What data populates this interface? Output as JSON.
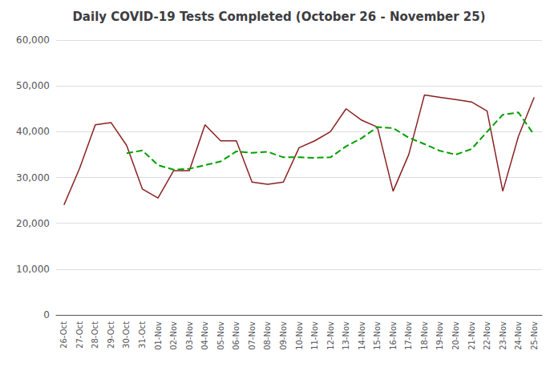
{
  "chart_data": {
    "type": "line",
    "title": "Daily COVID-19 Tests Completed (October 26 - November 25)",
    "categories": [
      "26-Oct",
      "27-Oct",
      "28-Oct",
      "29-Oct",
      "30-Oct",
      "31-Oct",
      "01-Nov",
      "02-Nov",
      "03-Nov",
      "04-Nov",
      "05-Nov",
      "06-Nov",
      "07-Nov",
      "08-Nov",
      "09-Nov",
      "10-Nov",
      "11-Nov",
      "12-Nov",
      "13-Nov",
      "14-Nov",
      "15-Nov",
      "16-Nov",
      "17-Nov",
      "18-Nov",
      "19-Nov",
      "20-Nov",
      "21-Nov",
      "22-Nov",
      "23-Nov",
      "24-Nov",
      "25-Nov"
    ],
    "series": [
      {
        "color": "#8B2020",
        "line_style": "solid",
        "values": [
          24000,
          32000,
          41500,
          42000,
          37000,
          27500,
          25500,
          31500,
          31500,
          41500,
          38000,
          38000,
          29000,
          28500,
          29000,
          36500,
          38000,
          40000,
          45000,
          42500,
          41000,
          27000,
          35000,
          48000,
          47500,
          47000,
          46500,
          44500,
          27000,
          39000,
          47500
        ]
      },
      {
        "color": "#00A000",
        "line_style": "dashed",
        "values": [
          null,
          null,
          null,
          null,
          35300,
          35900,
          32700,
          31700,
          31900,
          32700,
          33500,
          35700,
          35400,
          35600,
          34400,
          34400,
          34300,
          34400,
          36800,
          38600,
          41000,
          40800,
          38700,
          37300,
          35800,
          35000,
          36200,
          40000,
          43700,
          44200,
          39300
        ]
      }
    ],
    "ylim": [
      0,
      60000
    ],
    "yticks": [
      0,
      {
        "value": 10000,
        "label": "10,000"
      },
      {
        "value": 20000,
        "label": "20,000"
      },
      {
        "value": 30000,
        "label": "30,000"
      },
      {
        "value": 40000,
        "label": "40,000"
      },
      {
        "value": 50000,
        "label": "50,000"
      },
      {
        "value": 60000,
        "label": "60,000"
      }
    ],
    "grid": true
  }
}
